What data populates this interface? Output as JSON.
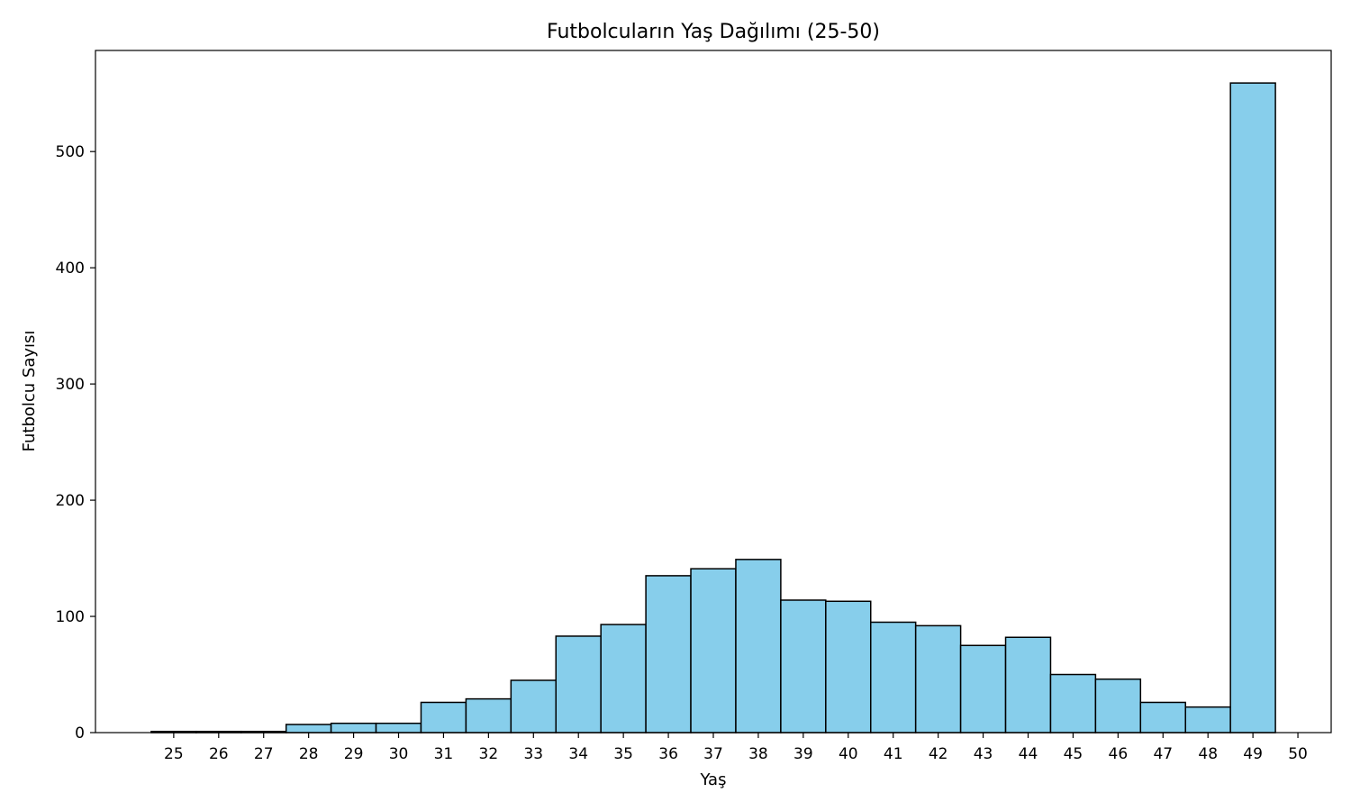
{
  "chart_data": {
    "type": "bar",
    "title": "Futbolcuların Yaş Dağılımı (25-50)",
    "xlabel": "Yaş",
    "ylabel": "Futbolcu Sayısı",
    "categories": [
      25,
      26,
      27,
      28,
      29,
      30,
      31,
      32,
      33,
      34,
      35,
      36,
      37,
      38,
      39,
      40,
      41,
      42,
      43,
      44,
      45,
      46,
      47,
      48,
      49
    ],
    "values": [
      1,
      1,
      1,
      7,
      8,
      8,
      26,
      29,
      45,
      83,
      93,
      135,
      141,
      149,
      114,
      113,
      95,
      92,
      75,
      82,
      50,
      46,
      26,
      22,
      559
    ],
    "xticks": [
      "25",
      "26",
      "27",
      "28",
      "29",
      "30",
      "31",
      "32",
      "33",
      "34",
      "35",
      "36",
      "37",
      "38",
      "39",
      "40",
      "41",
      "42",
      "43",
      "44",
      "45",
      "46",
      "47",
      "48",
      "49",
      "50"
    ],
    "yticks": [
      "0",
      "100",
      "200",
      "300",
      "400",
      "500"
    ],
    "xlim": [
      23.26,
      50.74
    ],
    "ylim": [
      0,
      587
    ],
    "grid": false,
    "bar_color": "#87CEEB",
    "edge_color": "#000000"
  }
}
